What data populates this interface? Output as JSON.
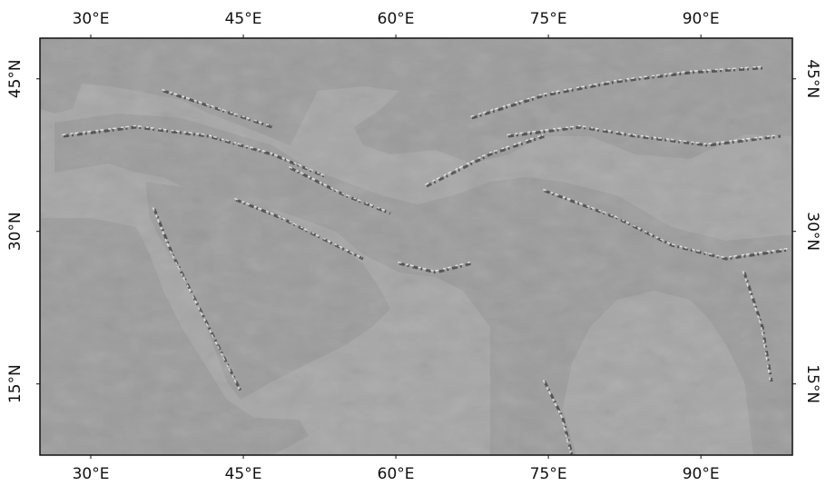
{
  "map": {
    "projection": "equirectangular",
    "style": "grayscale shaded relief",
    "extent": {
      "lon_min": 25,
      "lon_max": 99,
      "lat_min": 8,
      "lat_max": 49
    },
    "longitude_ticks": [
      {
        "value": 30,
        "label": "30°E"
      },
      {
        "value": 45,
        "label": "45°E"
      },
      {
        "value": 60,
        "label": "60°E"
      },
      {
        "value": 75,
        "label": "75°E"
      },
      {
        "value": 90,
        "label": "90°E"
      }
    ],
    "latitude_ticks": [
      {
        "value": 45,
        "label": "45°N"
      },
      {
        "value": 30,
        "label": "30°N"
      },
      {
        "value": 15,
        "label": "15°N"
      }
    ],
    "colors": {
      "sea": "#a6a6a6",
      "land_base": "#9c9c9c",
      "relief_highlight": "#ffffff",
      "relief_shadow": "#1a1a1a",
      "frame": "#111111"
    }
  }
}
